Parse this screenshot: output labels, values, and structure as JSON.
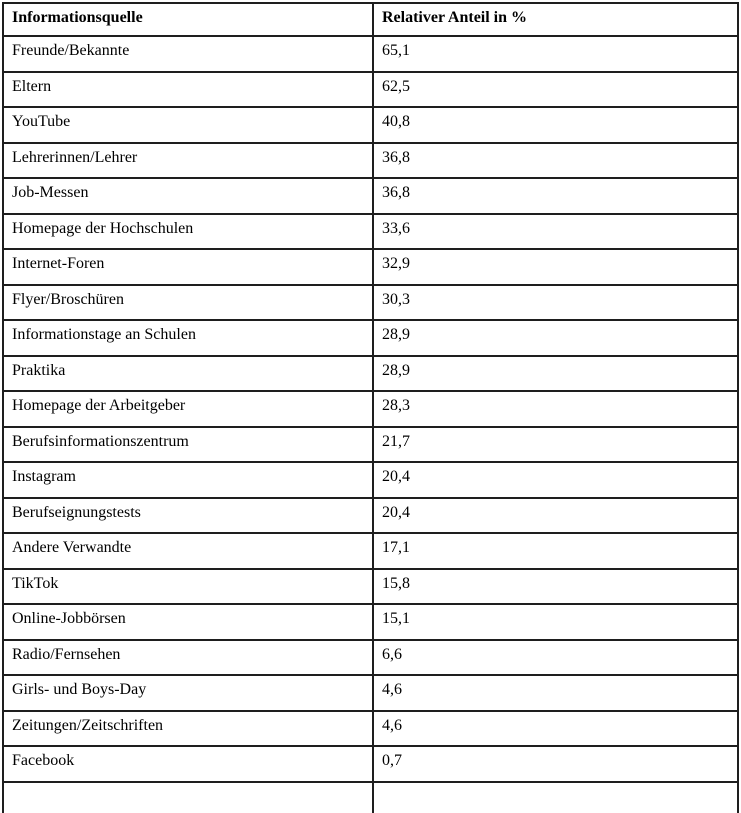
{
  "table": {
    "headers": {
      "source": "Informationsquelle",
      "value": "Relativer Anteil in %"
    },
    "rows": [
      {
        "source": "Freunde/Bekannte",
        "value": "65,1"
      },
      {
        "source": "Eltern",
        "value": "62,5"
      },
      {
        "source": "YouTube",
        "value": "40,8"
      },
      {
        "source": "Lehrerinnen/Lehrer",
        "value": "36,8"
      },
      {
        "source": "Job-Messen",
        "value": "36,8"
      },
      {
        "source": "Homepage der Hochschulen",
        "value": "33,6"
      },
      {
        "source": "Internet-Foren",
        "value": "32,9"
      },
      {
        "source": "Flyer/Broschüren",
        "value": "30,3"
      },
      {
        "source": "Informationstage an Schulen",
        "value": "28,9"
      },
      {
        "source": "Praktika",
        "value": "28,9"
      },
      {
        "source": "Homepage der Arbeitgeber",
        "value": "28,3"
      },
      {
        "source": "Berufsinformationszentrum",
        "value": "21,7"
      },
      {
        "source": "Instagram",
        "value": "20,4"
      },
      {
        "source": "Berufseignungstests",
        "value": "20,4"
      },
      {
        "source": "Andere Verwandte",
        "value": "17,1"
      },
      {
        "source": "TikTok",
        "value": "15,8"
      },
      {
        "source": "Online-Jobbörsen",
        "value": "15,1"
      },
      {
        "source": "Radio/Fernsehen",
        "value": "6,6"
      },
      {
        "source": "Girls- und Boys-Day",
        "value": "4,6"
      },
      {
        "source": "Zeitungen/Zeitschriften",
        "value": "4,6"
      },
      {
        "source": "Facebook",
        "value": "0,7"
      }
    ],
    "colors": {
      "border": "#1e1e1e",
      "text": "#000000",
      "background": "#ffffff"
    }
  }
}
